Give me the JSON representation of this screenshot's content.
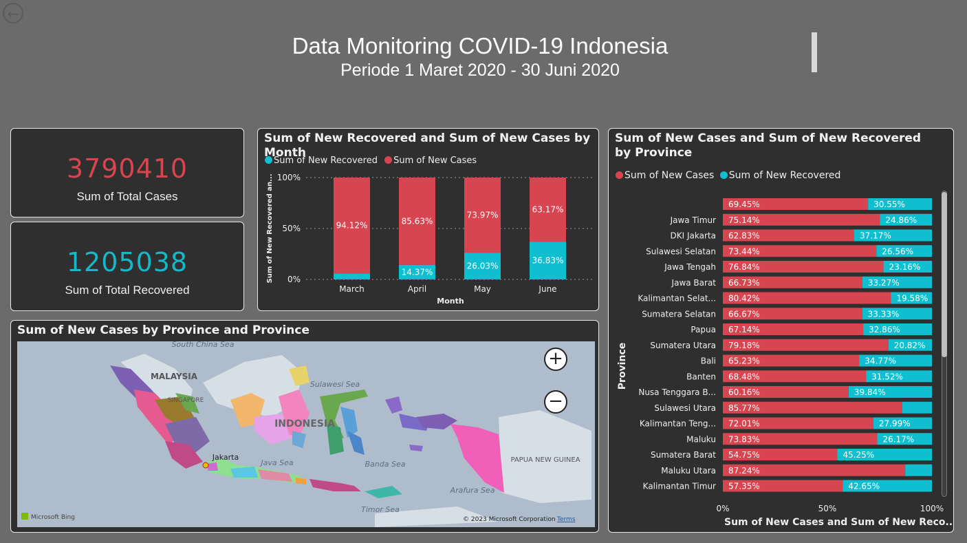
{
  "header": {
    "title": "Data Monitoring COVID-19 Indonesia",
    "subtitle": "Periode 1 Maret 2020 - 30 Juni 2020",
    "back_icon": "arrow-left-icon"
  },
  "kpis": {
    "total_cases": {
      "value": "3790410",
      "label": "Sum of Total Cases",
      "color": "#d64550"
    },
    "total_recovered": {
      "value": "1205038",
      "label": "Sum of Total Recovered",
      "color": "#14b8c8"
    }
  },
  "colors": {
    "cases": "#d64550",
    "recovered": "#10bfcf",
    "card_bg": "#2f2f2f",
    "page_bg": "#6b6b6b"
  },
  "month_chart": {
    "title": "Sum of New Recovered and Sum of New Cases by Month",
    "legend": [
      "Sum of New Recovered",
      "Sum of New Cases"
    ],
    "ylabel": "Sum of New Recovered an...",
    "xlabel": "Month",
    "yticks": [
      "100%",
      "50%",
      "0%"
    ],
    "chart_data": {
      "type": "bar",
      "stacked": "100%",
      "categories": [
        "March",
        "April",
        "May",
        "June"
      ],
      "series": [
        {
          "name": "Sum of New Recovered",
          "values": [
            5.88,
            14.37,
            26.03,
            36.83
          ],
          "labels": [
            "",
            "14.37%",
            "26.03%",
            "36.83%"
          ]
        },
        {
          "name": "Sum of New Cases",
          "values": [
            94.12,
            85.63,
            73.97,
            63.17
          ],
          "labels": [
            "94.12%",
            "85.63%",
            "73.97%",
            "63.17%"
          ]
        }
      ],
      "ylim": [
        0,
        100
      ],
      "grid": true
    }
  },
  "map": {
    "title": "Sum of New Cases by Province and Province",
    "zoom_in": "+",
    "zoom_out": "−",
    "labels": {
      "south_china_sea": "South China Sea",
      "malaysia": "MALAYSIA",
      "singapore": "SINGAPORE",
      "sulawesi_sea": "Sulawesi Sea",
      "indonesia": "INDONESIA",
      "jakarta": "Jakarta",
      "java_sea": "Java Sea",
      "banda_sea": "Banda Sea",
      "papua_new_guinea": "PAPUA NEW GUINEA",
      "arafura_sea": "Arafura Sea",
      "timor_sea": "Timor Sea"
    },
    "bing": "Microsoft Bing",
    "copyright": "© 2023 Microsoft Corporation",
    "terms": "Terms"
  },
  "province_chart": {
    "title": "Sum of New Cases and Sum of New Recovered by Province",
    "legend": [
      "Sum of New Cases",
      "Sum of New Recovered"
    ],
    "ylabel": "Province",
    "xlabel": "Sum of New Cases and Sum of New Reco...",
    "xticks": [
      "0%",
      "50%",
      "100%"
    ],
    "chart_data": {
      "type": "bar",
      "orientation": "horizontal",
      "stacked": "100%",
      "categories": [
        "",
        "Jawa Timur",
        "DKI Jakarta",
        "Sulawesi Selatan",
        "Jawa Tengah",
        "Jawa Barat",
        "Kalimantan Selat...",
        "Sumatera Selatan",
        "Papua",
        "Sumatera Utara",
        "Bali",
        "Banten",
        "Nusa Tenggara B...",
        "Sulawesi Utara",
        "Kalimantan Teng...",
        "Maluku",
        "Sumatera Barat",
        "Maluku Utara",
        "Kalimantan Timur"
      ],
      "series": [
        {
          "name": "Sum of New Cases",
          "values": [
            69.45,
            75.14,
            62.83,
            73.44,
            76.84,
            66.73,
            80.42,
            66.67,
            67.14,
            79.18,
            65.23,
            68.48,
            60.16,
            85.77,
            72.01,
            73.83,
            54.75,
            87.24,
            57.35
          ]
        },
        {
          "name": "Sum of New Recovered",
          "values": [
            30.55,
            24.86,
            37.17,
            26.56,
            23.16,
            33.27,
            19.58,
            33.33,
            32.86,
            20.82,
            34.77,
            31.52,
            39.84,
            14.23,
            27.99,
            26.17,
            45.25,
            12.76,
            42.65
          ]
        }
      ],
      "cases_labels": [
        "69.45%",
        "75.14%",
        "62.83%",
        "73.44%",
        "76.84%",
        "66.73%",
        "80.42%",
        "66.67%",
        "67.14%",
        "79.18%",
        "65.23%",
        "68.48%",
        "60.16%",
        "85.77%",
        "72.01%",
        "73.83%",
        "54.75%",
        "87.24%",
        "57.35%"
      ],
      "recovered_labels": [
        "30.55%",
        "24.86%",
        "37.17%",
        "26.56%",
        "23.16%",
        "33.27%",
        "19.58%",
        "33.33%",
        "32.86%",
        "20.82%",
        "34.77%",
        "31.52%",
        "39.84%",
        "",
        "27.99%",
        "26.17%",
        "45.25%",
        "",
        "42.65%"
      ],
      "xlim": [
        0,
        100
      ]
    }
  }
}
